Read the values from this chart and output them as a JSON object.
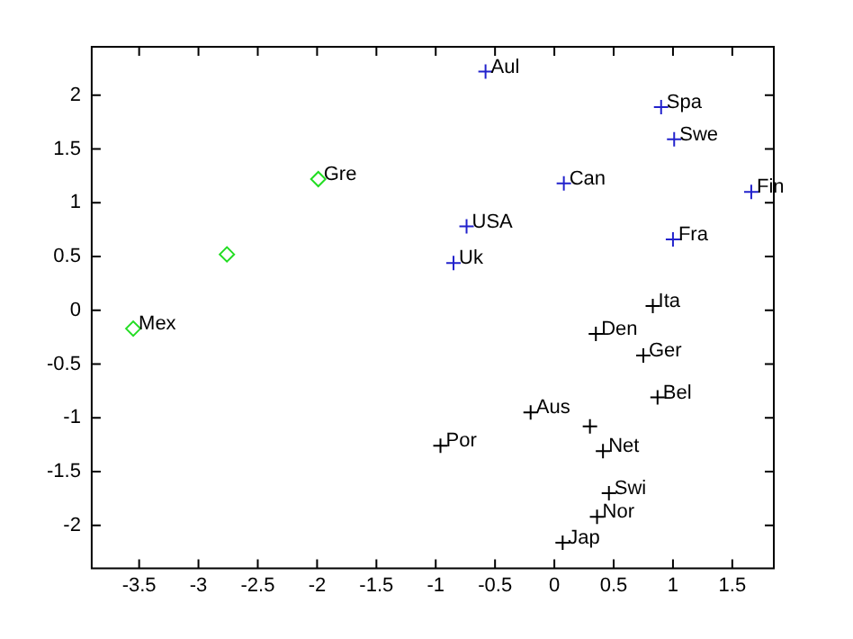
{
  "chart_data": {
    "type": "scatter",
    "xlim": [
      -3.9,
      1.85
    ],
    "ylim": [
      -2.4,
      2.45
    ],
    "xticks": [
      -3.5,
      -3,
      -2.5,
      -2,
      -1.5,
      -1,
      -0.5,
      0,
      0.5,
      1,
      1.5
    ],
    "yticks": [
      -2,
      -1.5,
      -1,
      -0.5,
      0,
      0.5,
      1,
      1.5,
      2
    ],
    "grid": false,
    "legend": false,
    "series": [
      {
        "color": "#22dd22",
        "marker": "diamond",
        "x": [
          -3.55,
          -2.76,
          -1.99
        ],
        "values": [
          -0.17,
          0.52,
          1.22
        ]
      },
      {
        "color": "#2222cc",
        "marker": "cross",
        "x": [
          -0.85,
          -0.74,
          -0.58,
          0.08,
          0.9,
          1.01,
          1.66,
          1.0
        ],
        "values": [
          0.44,
          0.78,
          2.22,
          1.18,
          1.89,
          1.59,
          1.1,
          0.66
        ]
      },
      {
        "color": "#000000",
        "marker": "cross",
        "x": [
          0.83,
          0.35,
          0.75,
          0.87,
          -0.2,
          0.3,
          0.41,
          -0.96,
          0.46,
          0.36,
          0.07
        ],
        "values": [
          0.04,
          -0.22,
          -0.42,
          -0.81,
          -0.95,
          -1.08,
          -1.31,
          -1.26,
          -1.7,
          -1.92,
          -2.16
        ]
      }
    ],
    "annotations": [
      {
        "text": "Mex",
        "x": -3.55,
        "y": -0.17
      },
      {
        "text": "Gre",
        "x": -1.99,
        "y": 1.22
      },
      {
        "text": "Uk",
        "x": -0.85,
        "y": 0.44
      },
      {
        "text": "USA",
        "x": -0.74,
        "y": 0.78
      },
      {
        "text": "Aul",
        "x": -0.58,
        "y": 2.22
      },
      {
        "text": "Can",
        "x": 0.08,
        "y": 1.18
      },
      {
        "text": "Spa",
        "x": 0.9,
        "y": 1.89
      },
      {
        "text": "Swe",
        "x": 1.01,
        "y": 1.59
      },
      {
        "text": "Fin",
        "x": 1.66,
        "y": 1.1
      },
      {
        "text": "Fra",
        "x": 1.0,
        "y": 0.66
      },
      {
        "text": "Ita",
        "x": 0.83,
        "y": 0.04
      },
      {
        "text": "Den",
        "x": 0.35,
        "y": -0.22
      },
      {
        "text": "Ger",
        "x": 0.75,
        "y": -0.42
      },
      {
        "text": "Bel",
        "x": 0.87,
        "y": -0.81
      },
      {
        "text": "Aus",
        "x": -0.2,
        "y": -0.95
      },
      {
        "text": "Net",
        "x": 0.41,
        "y": -1.31
      },
      {
        "text": "Por",
        "x": -0.96,
        "y": -1.26
      },
      {
        "text": "Swi",
        "x": 0.46,
        "y": -1.7
      },
      {
        "text": "Nor",
        "x": 0.36,
        "y": -1.92
      },
      {
        "text": "Jap",
        "x": 0.07,
        "y": -2.16
      }
    ]
  }
}
